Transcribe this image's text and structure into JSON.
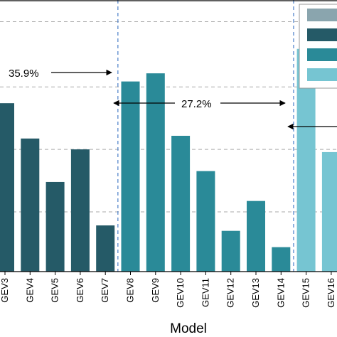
{
  "chart_data": {
    "type": "bar",
    "xlabel": "Model",
    "ylabel": "",
    "title": "",
    "categories": [
      "GEV3",
      "GEV4",
      "GEV5",
      "GEV6",
      "GEV7",
      "GEV8",
      "GEV9",
      "GEV10",
      "GEV11",
      "GEV12",
      "GEV13",
      "GEV14",
      "GEV15",
      "GEV16"
    ],
    "values": [
      62,
      49,
      33,
      45,
      17,
      70,
      73,
      50,
      37,
      15,
      26,
      9,
      82,
      44
    ],
    "ylim": [
      0,
      100
    ],
    "grid": "horizontal-dashed",
    "groups": [
      {
        "categories": [
          "GEV3",
          "GEV4",
          "GEV5",
          "GEV6",
          "GEV7"
        ],
        "color": "#255a67"
      },
      {
        "categories": [
          "GEV8",
          "GEV9",
          "GEV10",
          "GEV11",
          "GEV12",
          "GEV13",
          "GEV14"
        ],
        "color": "#2a8a98"
      },
      {
        "categories": [
          "GEV15",
          "GEV16"
        ],
        "color": "#76c5d2"
      }
    ],
    "legend": {
      "placement": "top-right",
      "swatches": [
        "#8aa5ae",
        "#255a67",
        "#2a8a98",
        "#76c5d2"
      ]
    },
    "annotations": [
      {
        "text": "35.9%",
        "arrow": "right",
        "ends_at": "GEV7/GEV8 boundary"
      },
      {
        "text": "27.2%",
        "arrow": "both",
        "spans": "GEV8 to GEV14"
      },
      {
        "text": "",
        "arrow": "left",
        "starts_at": "GEV14/GEV15 boundary"
      }
    ],
    "colors": {
      "boundary_line": "#4a7fc9",
      "grid": "#aaaaaa"
    }
  }
}
